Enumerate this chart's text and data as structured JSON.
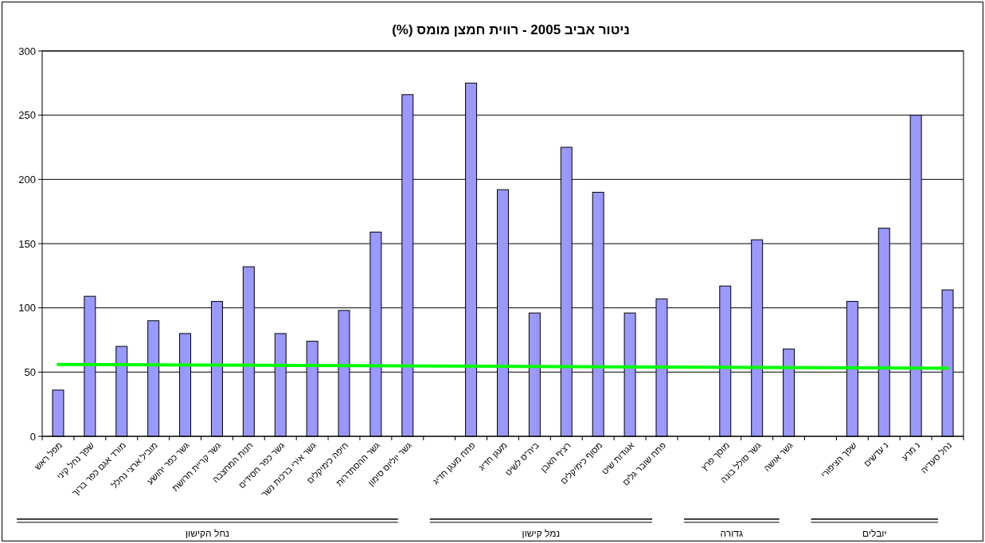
{
  "chart_data": {
    "type": "bar",
    "title": "ניטור אביב 2005 - רווית חמצן מומס (%)",
    "categories": [
      "מפל ראש",
      "שפך נחל קיני",
      "מורד אגם כפר ברוך",
      "מוביל ארצי נחלל",
      "גשר כפר יהושע",
      "גשר קריית חרושת",
      "חנות המחצבה",
      "גשר כפר חסידים",
      "גשר אירי ברכות נשר",
      "חיפה כימיקלים",
      "גשר ההסתדרות",
      "גשר יוליוס סימון",
      null,
      "פתח מעגן חדיג",
      "מעגן חדיג",
      "ביה\"ס לשיט",
      "רציף האבן",
      "מסוף כימיקלים",
      "אגודות שיט",
      "פתח שובר גלים",
      null,
      "מוסך פרץ",
      "גשר סולל בונה",
      "גשר אושה",
      null,
      "שפך הציפורי",
      "נ עדשים",
      "נ מרע",
      "נחל סעדיה"
    ],
    "series": [
      {
        "color": "#9999ff",
        "values": [
          36,
          109,
          70,
          90,
          80,
          105,
          132,
          80,
          74,
          98,
          159,
          266,
          null,
          275,
          192,
          96,
          225,
          190,
          96,
          107,
          null,
          117,
          153,
          68,
          null,
          105,
          162,
          250,
          114
        ]
      },
      {
        "type": "line",
        "color": "#00ff00",
        "x": [
          "מפל ראש",
          "נחל סעדיה"
        ],
        "values": [
          56,
          53
        ]
      }
    ],
    "ylim": [
      0,
      300
    ],
    "yticks": [
      0,
      50,
      100,
      150,
      200,
      250,
      300
    ],
    "grid": "y",
    "annotations": [
      "נחל הקישון",
      "נמל קישון",
      "גדורה",
      "יובלים"
    ]
  }
}
